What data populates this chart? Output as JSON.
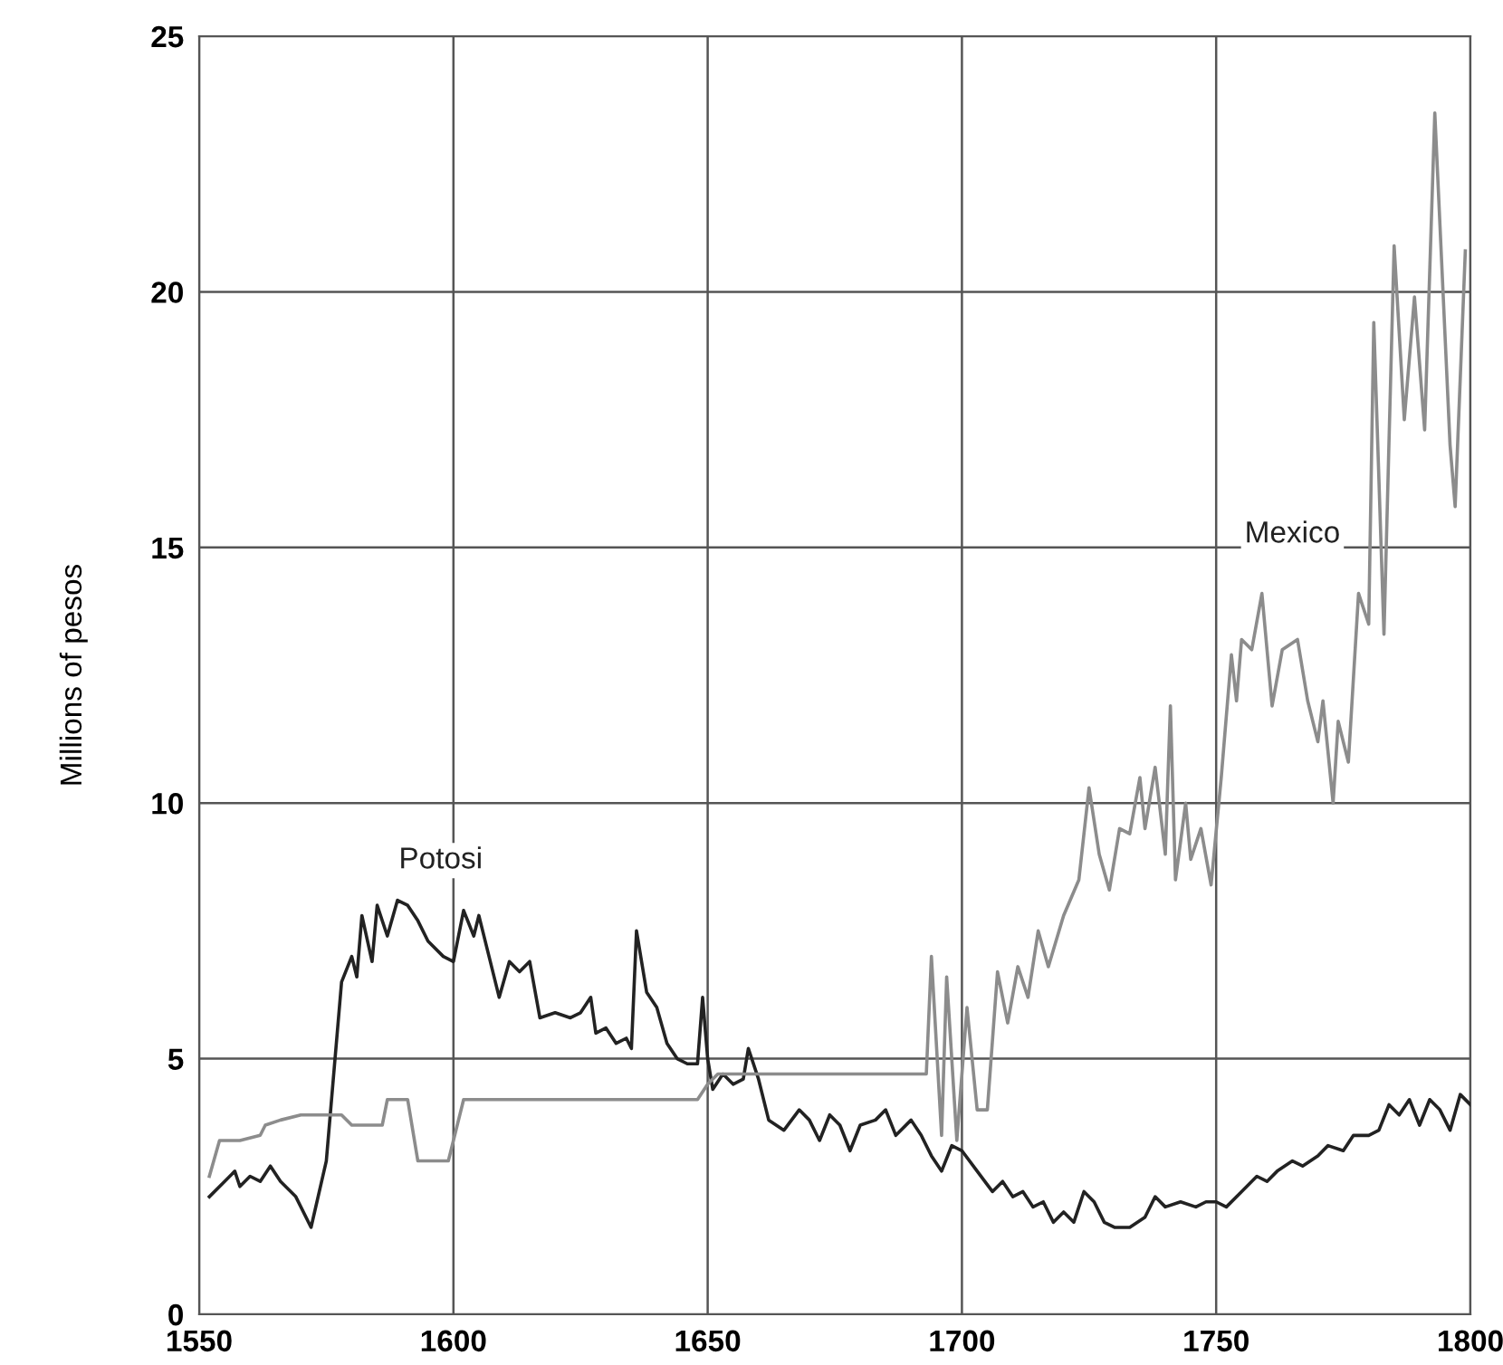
{
  "chart_data": {
    "type": "line",
    "ylabel": "Millions of pesos",
    "xlim": [
      1550,
      1800
    ],
    "xticks": [
      1550,
      1600,
      1650,
      1700,
      1750,
      1800
    ],
    "ylim": [
      0,
      25
    ],
    "yticks": [
      0,
      5,
      10,
      15,
      20,
      25
    ],
    "grid": true,
    "legend": false,
    "marker": "none",
    "line_style": "solid",
    "series": [
      {
        "name": "Potosi",
        "color": "#222222",
        "x": [
          1552,
          1555,
          1557,
          1558,
          1560,
          1562,
          1564,
          1566,
          1569,
          1572,
          1575,
          1578,
          1580,
          1581,
          1582,
          1584,
          1585,
          1587,
          1589,
          1591,
          1593,
          1595,
          1598,
          1600,
          1602,
          1604,
          1605,
          1607,
          1609,
          1611,
          1613,
          1615,
          1617,
          1620,
          1623,
          1625,
          1627,
          1628,
          1630,
          1632,
          1634,
          1635,
          1636,
          1638,
          1640,
          1642,
          1644,
          1646,
          1648,
          1649,
          1650,
          1651,
          1653,
          1655,
          1657,
          1658,
          1660,
          1662,
          1665,
          1668,
          1670,
          1672,
          1674,
          1676,
          1678,
          1680,
          1683,
          1685,
          1687,
          1690,
          1692,
          1694,
          1696,
          1698,
          1700,
          1703,
          1706,
          1708,
          1710,
          1712,
          1714,
          1716,
          1718,
          1720,
          1722,
          1724,
          1726,
          1728,
          1730,
          1733,
          1736,
          1738,
          1740,
          1743,
          1746,
          1748,
          1750,
          1752,
          1755,
          1758,
          1760,
          1762,
          1765,
          1767,
          1770,
          1772,
          1775,
          1777,
          1780,
          1782,
          1784,
          1786,
          1788,
          1790,
          1792,
          1794,
          1796,
          1798,
          1800
        ],
        "values": [
          2.3,
          2.6,
          2.8,
          2.5,
          2.7,
          2.6,
          2.9,
          2.6,
          2.3,
          1.7,
          3.0,
          6.5,
          7.0,
          6.6,
          7.8,
          6.9,
          8.0,
          7.4,
          8.1,
          8.0,
          7.7,
          7.3,
          7.0,
          6.9,
          7.9,
          7.4,
          7.8,
          7.0,
          6.2,
          6.9,
          6.7,
          6.9,
          5.8,
          5.9,
          5.8,
          5.9,
          6.2,
          5.5,
          5.6,
          5.3,
          5.4,
          5.2,
          7.5,
          6.3,
          6.0,
          5.3,
          5.0,
          4.9,
          4.9,
          6.2,
          5.0,
          4.4,
          4.7,
          4.5,
          4.6,
          5.2,
          4.6,
          3.8,
          3.6,
          4.0,
          3.8,
          3.4,
          3.9,
          3.7,
          3.2,
          3.7,
          3.8,
          4.0,
          3.5,
          3.8,
          3.5,
          3.1,
          2.8,
          3.3,
          3.2,
          2.8,
          2.4,
          2.6,
          2.3,
          2.4,
          2.1,
          2.2,
          1.8,
          2.0,
          1.8,
          2.4,
          2.2,
          1.8,
          1.7,
          1.7,
          1.9,
          2.3,
          2.1,
          2.2,
          2.1,
          2.2,
          2.2,
          2.1,
          2.4,
          2.7,
          2.6,
          2.8,
          3.0,
          2.9,
          3.1,
          3.3,
          3.2,
          3.5,
          3.5,
          3.6,
          4.1,
          3.9,
          4.2,
          3.7,
          4.2,
          4.0,
          3.6,
          4.3,
          4.1
        ]
      },
      {
        "name": "Mexico",
        "color": "#8c8c8c",
        "x": [
          1552,
          1554,
          1558,
          1562,
          1563,
          1566,
          1570,
          1578,
          1580,
          1586,
          1587,
          1591,
          1593,
          1599,
          1602,
          1648,
          1650,
          1652,
          1693,
          1694,
          1696,
          1697,
          1699,
          1701,
          1703,
          1705,
          1707,
          1709,
          1711,
          1713,
          1715,
          1717,
          1720,
          1723,
          1725,
          1727,
          1729,
          1731,
          1733,
          1735,
          1736,
          1738,
          1740,
          1741,
          1742,
          1744,
          1745,
          1747,
          1749,
          1751,
          1753,
          1754,
          1755,
          1757,
          1759,
          1761,
          1763,
          1766,
          1768,
          1770,
          1771,
          1773,
          1774,
          1776,
          1778,
          1780,
          1781,
          1783,
          1785,
          1787,
          1789,
          1791,
          1793,
          1796,
          1797,
          1799
        ],
        "values": [
          2.7,
          3.4,
          3.4,
          3.5,
          3.7,
          3.8,
          3.9,
          3.9,
          3.7,
          3.7,
          4.2,
          4.2,
          3.0,
          3.0,
          4.2,
          4.2,
          4.5,
          4.7,
          4.7,
          7.0,
          3.5,
          6.6,
          3.4,
          6.0,
          4.0,
          4.0,
          6.7,
          5.7,
          6.8,
          6.2,
          7.5,
          6.8,
          7.8,
          8.5,
          10.3,
          9.0,
          8.3,
          9.5,
          9.4,
          10.5,
          9.5,
          10.7,
          9.0,
          11.9,
          8.5,
          10.0,
          8.9,
          9.5,
          8.4,
          10.5,
          12.9,
          12.0,
          13.2,
          13.0,
          14.1,
          11.9,
          13.0,
          13.2,
          12.0,
          11.2,
          12.0,
          10.0,
          11.6,
          10.8,
          14.1,
          13.5,
          19.4,
          13.3,
          20.9,
          17.5,
          19.9,
          17.3,
          23.5,
          17.0,
          15.8,
          20.8
        ]
      }
    ]
  }
}
